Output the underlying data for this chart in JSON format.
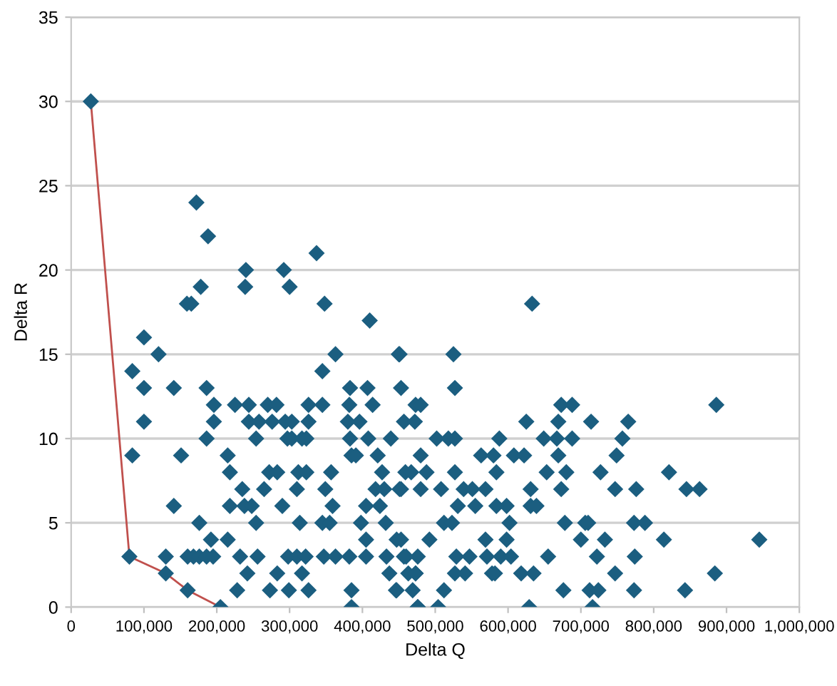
{
  "chart_data": {
    "type": "scatter",
    "xlabel": "Delta Q",
    "ylabel": "Delta R",
    "xlim": [
      0,
      1000000
    ],
    "ylim": [
      0,
      35
    ],
    "xticks": [
      0,
      {
        "value": 100000,
        "label": "100,000"
      },
      {
        "value": 200000,
        "label": "200,000"
      },
      {
        "value": 300000,
        "label": "300,000"
      },
      {
        "value": 400000,
        "label": "400,000"
      },
      {
        "value": 500000,
        "label": "500,000"
      },
      {
        "value": 600000,
        "label": "600,000"
      },
      {
        "value": 700000,
        "label": "700,000"
      },
      {
        "value": 800000,
        "label": "800,000"
      },
      {
        "value": 900000,
        "label": "900,000"
      },
      {
        "value": 1000000,
        "label": "1,000,000"
      }
    ],
    "yticks": [
      0,
      5,
      10,
      15,
      20,
      25,
      30,
      35
    ],
    "grid": "y",
    "legend": false,
    "marker": "diamond",
    "series": [
      {
        "color": "#1b5e80",
        "x": [
          27000,
          80000,
          84000,
          84000,
          100000,
          100000,
          100000,
          120000,
          141000,
          141000,
          151000,
          130000,
          130000,
          160000,
          168000,
          176000,
          186000,
          195000,
          160000,
          176000,
          186000,
          186000,
          196000,
          196000,
          192000,
          205000,
          215000,
          215000,
          218000,
          218000,
          225000,
          228000,
          232000,
          235000,
          238000,
          242000,
          244000,
          244000,
          248000,
          254000,
          254000,
          256000,
          258000,
          265000,
          270000,
          272000,
          273000,
          276000,
          282000,
          283000,
          283000,
          290000,
          294000,
          297000,
          298000,
          299000,
          303000,
          303000,
          310000,
          310000,
          312000,
          314000,
          317000,
          317000,
          322000,
          323000,
          323000,
          326000,
          326000,
          326000,
          345000,
          345000,
          345000,
          347000,
          349000,
          355000,
          357000,
          359000,
          363000,
          363000,
          382000,
          385000,
          385000,
          383000,
          382000,
          380000,
          383000,
          385000,
          391000,
          396000,
          398000,
          405000,
          405000,
          405000,
          407000,
          408000,
          414000,
          418000,
          421000,
          424000,
          427000,
          430000,
          432000,
          433000,
          437000,
          439000,
          446000,
          447000,
          450000,
          453000,
          457000,
          459000,
          453000,
          460000,
          467000,
          473000,
          476000,
          473000,
          172000,
          188000,
          159000,
          165000,
          178000,
          240000,
          239000,
          292000,
          300000,
          337000,
          348000,
          410000,
          633000,
          451000,
          525000,
          527000,
          480000,
          472000,
          502000,
          518000,
          527000,
          480000,
          451000,
          488000,
          480000,
          508000,
          527000,
          539000,
          551000,
          569000,
          563000,
          580000,
          588000,
          584000,
          608000,
          622000,
          625000,
          649000,
          669000,
          673000,
          688000,
          688000,
          667000,
          669000,
          653000,
          680000,
          714000,
          727000,
          765000,
          757000,
          749000,
          821000,
          747000,
          776000,
          845000,
          863000,
          886000,
          531000,
          555000,
          598000,
          631000,
          631000,
          639000,
          673000,
          512000,
          523000,
          584000,
          602000,
          678000,
          706000,
          710000,
          773000,
          788000,
          492000,
          453000,
          569000,
          598000,
          700000,
          733000,
          814000,
          945000,
          457000,
          476000,
          529000,
          547000,
          571000,
          590000,
          604000,
          655000,
          722000,
          774000,
          463000,
          473000,
          527000,
          541000,
          578000,
          582000,
          618000,
          635000,
          747000,
          884000,
          447000,
          469000,
          512000,
          676000,
          712000,
          724000,
          773000,
          843000,
          476000,
          504000,
          629000,
          716000
        ],
        "values": [
          30,
          3,
          9,
          14,
          16,
          13,
          11,
          15,
          13,
          6,
          9,
          3,
          2,
          3,
          3,
          3,
          3,
          3,
          1,
          5,
          13,
          10,
          12,
          11,
          4,
          0,
          4,
          9,
          8,
          6,
          12,
          1,
          3,
          7,
          6,
          2,
          11,
          12,
          6,
          5,
          10,
          3,
          11,
          7,
          12,
          8,
          1,
          11,
          12,
          2,
          8,
          6,
          11,
          10,
          3,
          1,
          11,
          10,
          3,
          7,
          8,
          5,
          10,
          2,
          3,
          8,
          10,
          12,
          11,
          1,
          12,
          14,
          5,
          3,
          7,
          5,
          8,
          6,
          15,
          3,
          3,
          1,
          0,
          13,
          12,
          11,
          10,
          9,
          9,
          11,
          5,
          6,
          4,
          3,
          13,
          10,
          12,
          7,
          9,
          6,
          8,
          7,
          5,
          3,
          2,
          10,
          1,
          4,
          15,
          13,
          11,
          8,
          7,
          3,
          8,
          12,
          0,
          2,
          24,
          22,
          18,
          18,
          19,
          20,
          19,
          20,
          19,
          21,
          18,
          17,
          18,
          15,
          15,
          13,
          12,
          11,
          10,
          10,
          10,
          9,
          7,
          8,
          7,
          7,
          8,
          7,
          7,
          7,
          9,
          9,
          10,
          8,
          9,
          9,
          11,
          10,
          11,
          12,
          12,
          10,
          10,
          9,
          8,
          8,
          11,
          8,
          11,
          10,
          9,
          8,
          7,
          7,
          7,
          7,
          12,
          6,
          6,
          6,
          7,
          6,
          6,
          7,
          5,
          5,
          6,
          5,
          5,
          5,
          5,
          5,
          5,
          4,
          4,
          4,
          4,
          4,
          4,
          4,
          4,
          3,
          3,
          3,
          3,
          3,
          3,
          3,
          3,
          3,
          3,
          2,
          2,
          2,
          2,
          2,
          2,
          2,
          2,
          2,
          2,
          1,
          1,
          1,
          1,
          1,
          1,
          1,
          1,
          0,
          0,
          0,
          0
        ]
      },
      {
        "type": "line",
        "color": "#c0504d",
        "marker": "none",
        "line_style": "solid",
        "x": [
          27000,
          80000,
          130000,
          160000,
          205000
        ],
        "values": [
          30,
          3,
          2,
          1,
          0
        ]
      }
    ]
  }
}
